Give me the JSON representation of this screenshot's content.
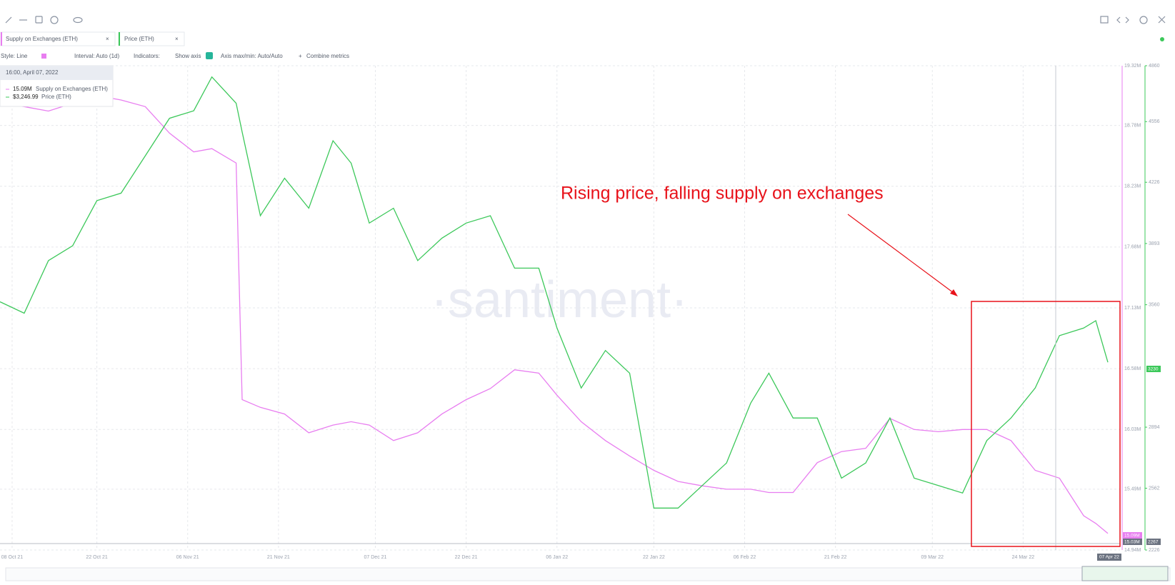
{
  "toolbar": {
    "style": "Style: Line",
    "interval": "Interval: Auto (1d)",
    "indicators": "Indicators:",
    "show_axis": "Show axis",
    "axis_minmax": "Axis max/min: Auto/Auto",
    "combine": "Combine metrics"
  },
  "tooltip": {
    "time": "16:00, April 07, 2022",
    "rows": [
      "15.09M",
      "$3,246.99"
    ]
  },
  "badges": {
    "supply_last": "15.09M",
    "supply_low": "15.03M",
    "price_last": "3230",
    "price_low": "2267",
    "date": "07 Apr 22"
  },
  "watermark": "·santiment·",
  "chart_data": {
    "type": "line",
    "annotation": "Rising price, falling supply on exchanges",
    "x": [
      "2021-10-06",
      "2021-10-10",
      "2021-10-14",
      "2021-10-18",
      "2021-10-22",
      "2021-10-26",
      "2021-10-30",
      "2021-11-03",
      "2021-11-07",
      "2021-11-10",
      "2021-11-14",
      "2021-11-15",
      "2021-11-18",
      "2021-11-22",
      "2021-11-26",
      "2021-11-30",
      "2021-12-03",
      "2021-12-06",
      "2021-12-10",
      "2021-12-14",
      "2021-12-18",
      "2021-12-22",
      "2021-12-26",
      "2021-12-30",
      "2022-01-03",
      "2022-01-06",
      "2022-01-10",
      "2022-01-14",
      "2022-01-18",
      "2022-01-22",
      "2022-01-26",
      "2022-01-30",
      "2022-02-03",
      "2022-02-07",
      "2022-02-10",
      "2022-02-14",
      "2022-02-18",
      "2022-02-22",
      "2022-02-26",
      "2022-03-02",
      "2022-03-06",
      "2022-03-10",
      "2022-03-14",
      "2022-03-18",
      "2022-03-22",
      "2022-03-26",
      "2022-03-30",
      "2022-04-03",
      "2022-04-05",
      "2022-04-07"
    ],
    "xlim": [
      "2021-10-06",
      "2022-04-09"
    ],
    "xticks": [
      {
        "value": "2021-10-08",
        "label": "08 Oct 21"
      },
      {
        "value": "2021-10-22",
        "label": "22 Oct 21"
      },
      {
        "value": "2021-11-06",
        "label": "06 Nov 21"
      },
      {
        "value": "2021-11-21",
        "label": "21 Nov 21"
      },
      {
        "value": "2021-12-07",
        "label": "07 Dec 21"
      },
      {
        "value": "2021-12-22",
        "label": "22 Dec 21"
      },
      {
        "value": "2022-01-06",
        "label": "06 Jan 22"
      },
      {
        "value": "2022-01-22",
        "label": "22 Jan 22"
      },
      {
        "value": "2022-02-06",
        "label": "06 Feb 22"
      },
      {
        "value": "2022-02-21",
        "label": "21 Feb 22"
      },
      {
        "value": "2022-03-09",
        "label": "09 Mar 22"
      },
      {
        "value": "2022-03-24",
        "label": "24 Mar 22"
      }
    ],
    "ylim": [
      14.94,
      19.32
    ],
    "yticks": [
      {
        "value": 14.94,
        "label": "14.94M"
      },
      {
        "value": 15.49,
        "label": "15.49M"
      },
      {
        "value": 16.03,
        "label": "16.03M"
      },
      {
        "value": 16.58,
        "label": "16.58M"
      },
      {
        "value": 17.13,
        "label": "17.13M"
      },
      {
        "value": 17.68,
        "label": "17.68M"
      },
      {
        "value": 18.23,
        "label": "18.23M"
      },
      {
        "value": 18.78,
        "label": "18.78M"
      },
      {
        "value": 19.32,
        "label": "19.32M"
      }
    ],
    "y2lim": [
      2226,
      4860
    ],
    "y2ticks": [
      2226,
      2562,
      2894,
      3560,
      3893,
      4226,
      4556,
      4860
    ],
    "grid": true,
    "series": [
      {
        "name": "Supply on Exchanges (ETH)",
        "color": "#e87ef0",
        "values": [
          18.98,
          18.95,
          18.91,
          18.98,
          19.05,
          19.01,
          18.95,
          18.71,
          18.54,
          18.57,
          18.44,
          16.3,
          16.23,
          16.17,
          16.0,
          16.07,
          16.1,
          16.07,
          15.93,
          16.0,
          16.17,
          16.3,
          16.4,
          16.57,
          16.54,
          16.34,
          16.1,
          15.93,
          15.79,
          15.66,
          15.56,
          15.52,
          15.49,
          15.49,
          15.46,
          15.46,
          15.73,
          15.83,
          15.86,
          16.13,
          16.03,
          16.01,
          16.03,
          16.03,
          15.93,
          15.66,
          15.59,
          15.25,
          15.18,
          15.09
        ]
      },
      {
        "name": "Price (ETH)",
        "color": "#3cc85a",
        "axis": "y2",
        "values": [
          3576,
          3514,
          3800,
          3881,
          4126,
          4167,
          4370,
          4574,
          4615,
          4799,
          4656,
          4500,
          4044,
          4248,
          4085,
          4452,
          4330,
          4004,
          4085,
          3800,
          3922,
          4004,
          4044,
          3759,
          3759,
          3433,
          3107,
          3311,
          3188,
          2454,
          2454,
          2577,
          2699,
          3025,
          3188,
          2944,
          2944,
          2617,
          2699,
          2944,
          2617,
          2577,
          2536,
          2821,
          2944,
          3107,
          3392,
          3433,
          3473,
          3247
        ]
      }
    ]
  }
}
